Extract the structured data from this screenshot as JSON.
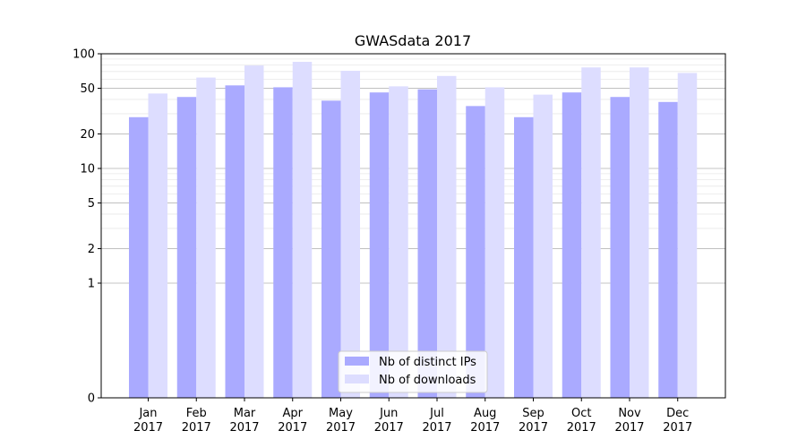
{
  "chart_data": {
    "type": "bar",
    "title": "GWASdata 2017",
    "xlabel": "",
    "ylabel": "",
    "yscale": "symlog",
    "ylim": [
      0,
      100
    ],
    "yticks": [
      0,
      1,
      2,
      5,
      10,
      20,
      50,
      100
    ],
    "ytick_labels": [
      "0",
      "1",
      "2",
      "5",
      "10",
      "20",
      "50",
      "100"
    ],
    "categories": [
      "Jan\n2017",
      "Feb\n2017",
      "Mar\n2017",
      "Apr\n2017",
      "May\n2017",
      "Jun\n2017",
      "Jul\n2017",
      "Aug\n2017",
      "Sep\n2017",
      "Oct\n2017",
      "Nov\n2017",
      "Dec\n2017"
    ],
    "category_lines": [
      [
        "Jan",
        "2017"
      ],
      [
        "Feb",
        "2017"
      ],
      [
        "Mar",
        "2017"
      ],
      [
        "Apr",
        "2017"
      ],
      [
        "May",
        "2017"
      ],
      [
        "Jun",
        "2017"
      ],
      [
        "Jul",
        "2017"
      ],
      [
        "Aug",
        "2017"
      ],
      [
        "Sep",
        "2017"
      ],
      [
        "Oct",
        "2017"
      ],
      [
        "Nov",
        "2017"
      ],
      [
        "Dec",
        "2017"
      ]
    ],
    "series": [
      {
        "name": "Nb of distinct IPs",
        "color": "#aaaaff",
        "values": [
          28,
          42,
          53,
          51,
          39,
          46,
          49,
          35,
          28,
          46,
          42,
          38
        ]
      },
      {
        "name": "Nb of downloads",
        "color": "#ddddff",
        "values": [
          45,
          62,
          79,
          85,
          71,
          52,
          64,
          51,
          44,
          76,
          76,
          68
        ]
      }
    ],
    "grid": true,
    "legend": "bottom-center"
  }
}
